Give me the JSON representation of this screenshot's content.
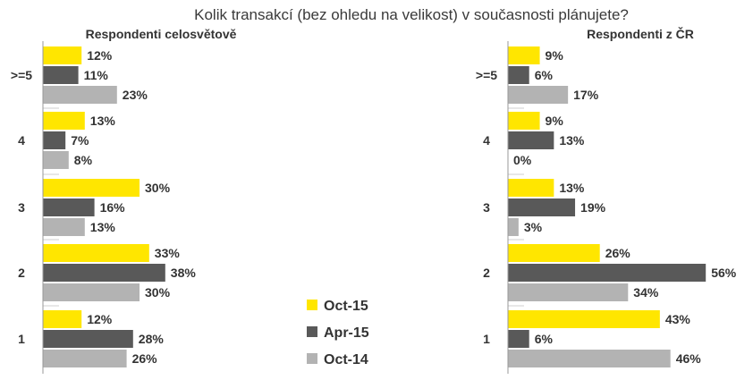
{
  "title": "Kolik transakcí (bez ohledu na velikost) v současnosti plánujete?",
  "colors": {
    "Oct-15": "#ffe600",
    "Apr-15": "#595959",
    "Oct-14": "#b3b3b3",
    "separator": "#cfcfcf",
    "axis": "#9a9a9a"
  },
  "legend": [
    "Oct-15",
    "Apr-15",
    "Oct-14"
  ],
  "chart_data": [
    {
      "type": "bar",
      "orientation": "horizontal",
      "title": "Respondenti celosvětově",
      "categories": [
        ">=5",
        "4",
        "3",
        "2",
        "1"
      ],
      "series": [
        {
          "name": "Oct-15",
          "values": [
            12,
            13,
            30,
            33,
            12
          ],
          "labels": [
            "12%",
            "13%",
            "30%",
            "33%",
            "12%"
          ]
        },
        {
          "name": "Apr-15",
          "values": [
            11,
            7,
            16,
            38,
            28
          ],
          "labels": [
            "11%",
            "7%",
            "16%",
            "38%",
            "28%"
          ]
        },
        {
          "name": "Oct-14",
          "values": [
            23,
            8,
            13,
            30,
            26
          ],
          "labels": [
            "23%",
            "8%",
            "13%",
            "30%",
            "26%"
          ]
        }
      ]
    },
    {
      "type": "bar",
      "orientation": "horizontal",
      "title": "Respondenti z ČR",
      "categories": [
        ">=5",
        "4",
        "3",
        "2",
        "1"
      ],
      "series": [
        {
          "name": "Oct-15",
          "values": [
            9,
            9,
            13,
            26,
            43
          ],
          "labels": [
            "9%",
            "9%",
            "13%",
            "26%",
            "43%"
          ]
        },
        {
          "name": "Apr-15",
          "values": [
            6,
            13,
            19,
            56,
            6
          ],
          "labels": [
            "6%",
            "13%",
            "19%",
            "56%",
            "6%"
          ]
        },
        {
          "name": "Oct-14",
          "values": [
            17,
            0,
            3,
            34,
            46
          ],
          "labels": [
            "17%",
            "0%",
            "3%",
            "34%",
            "46%"
          ]
        }
      ]
    }
  ]
}
